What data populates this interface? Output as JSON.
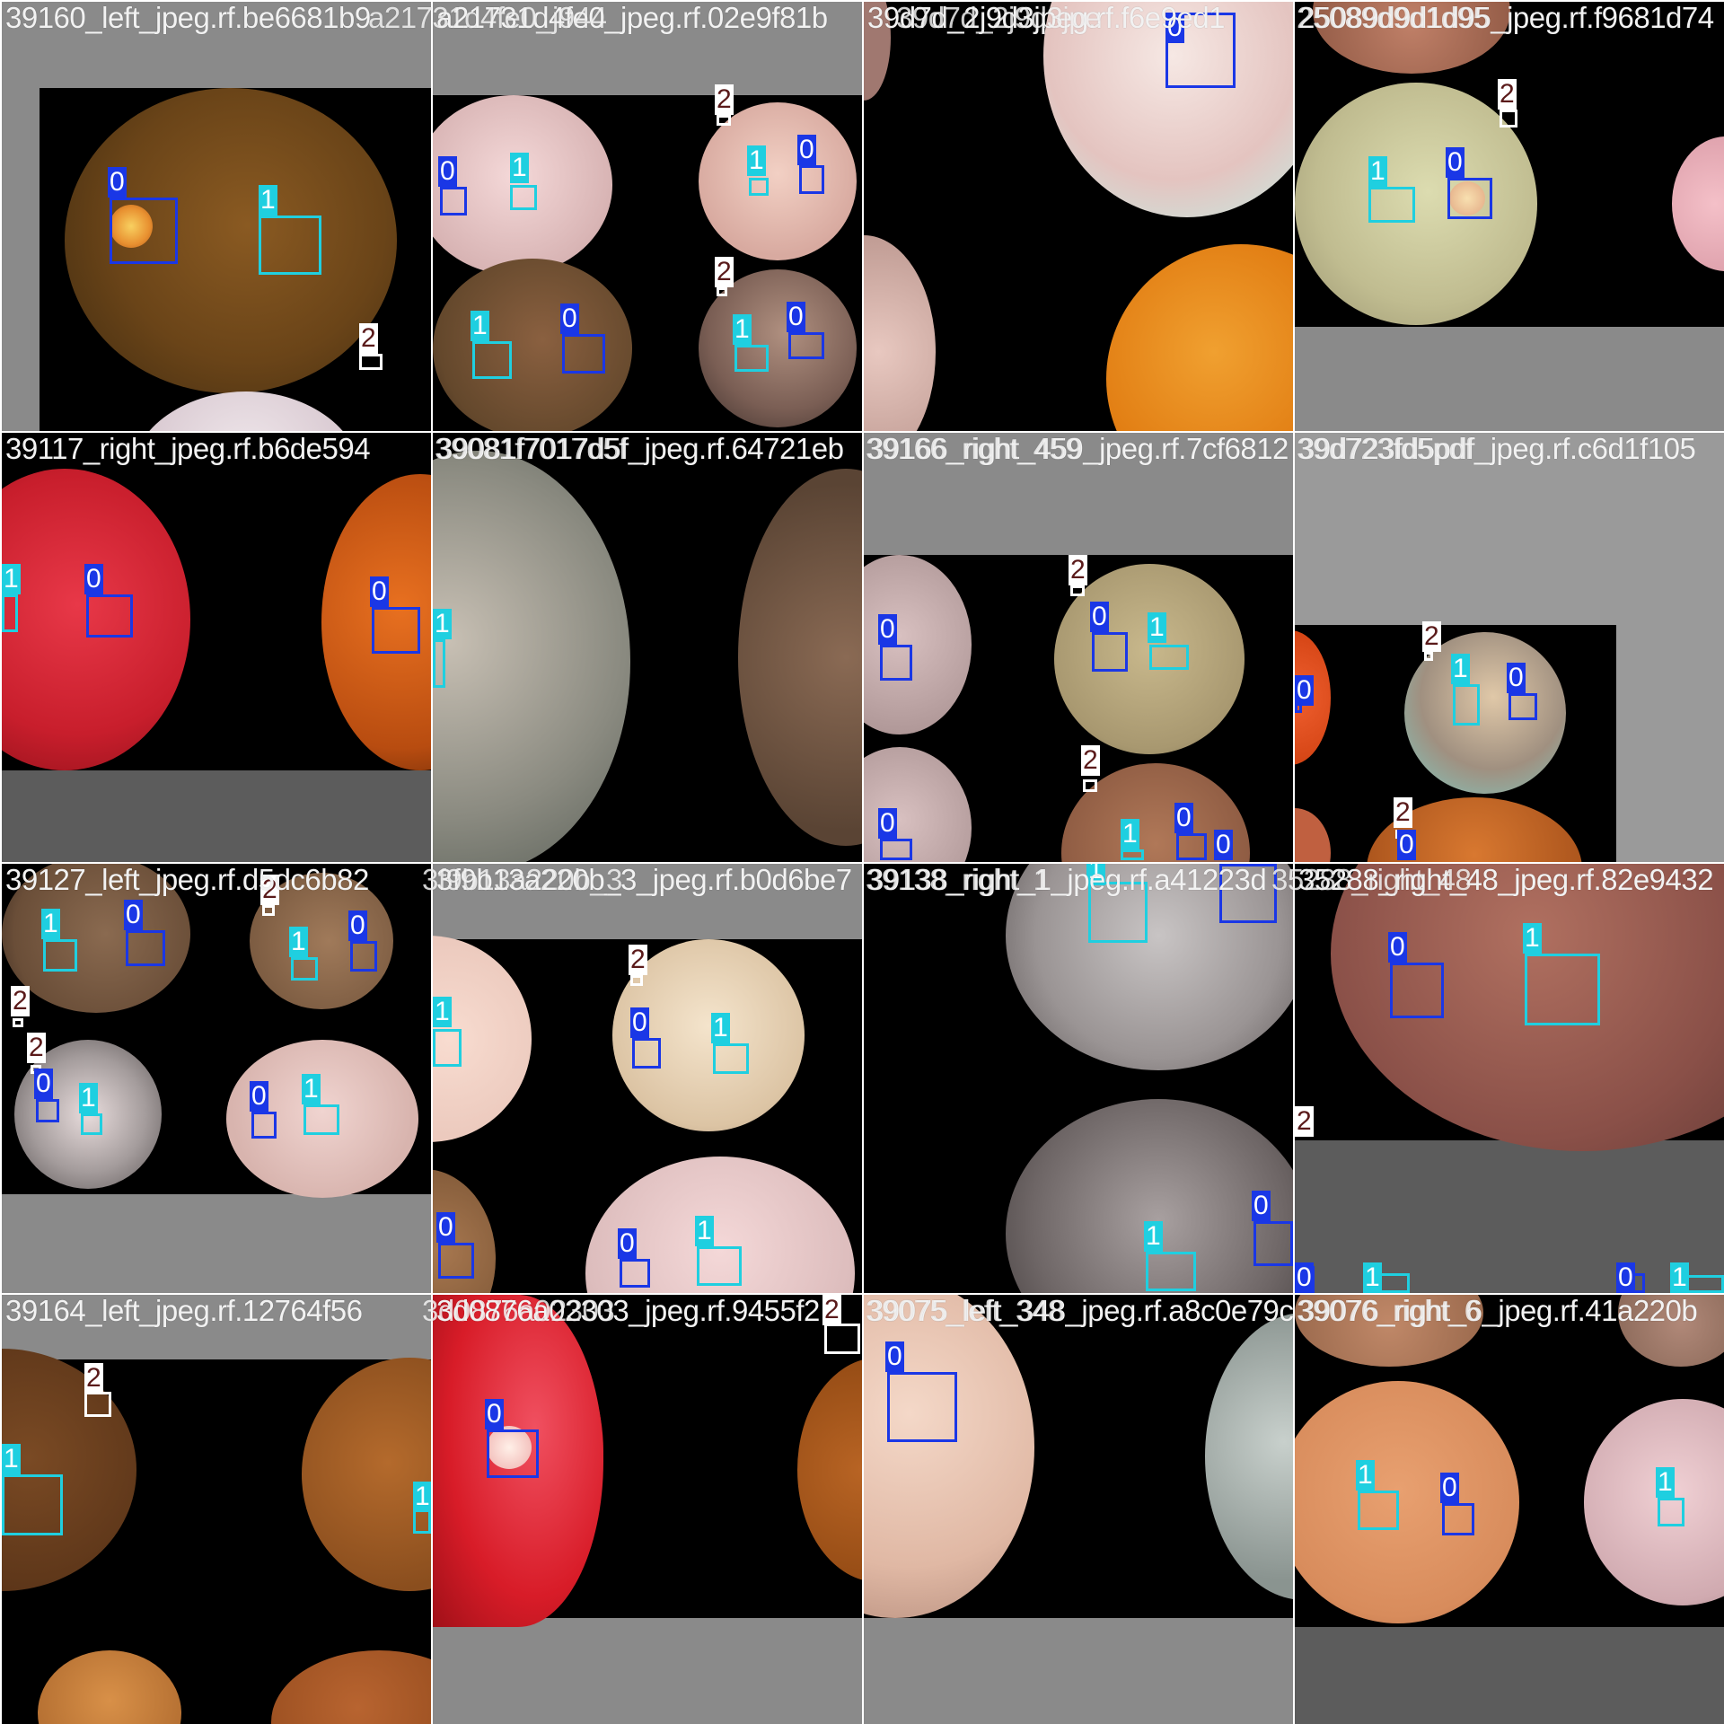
{
  "tiles": [
    {
      "title": "39160_left_jpeg.rf.be6681b9",
      "overlay": "a21731d4fe0_j944"
    },
    {
      "title": "a21731d4fe0_jpeg.rf.02e9f81b",
      "overlay": "39d7d_2j9d3jpe"
    },
    {
      "title": "39d7d_2j9d3jpeg.rf.f6e9ed1",
      "overlay": "25089d9d1d95"
    },
    {
      "title": "25089d9d1d95_jpeg.rf.f9681d74",
      "overlay": ""
    },
    {
      "title": "39117_right_jpeg.rf.b6de594",
      "overlay": "39081f7017d5f"
    },
    {
      "title": "39081f7017d5f_jpeg.rf.64721eb",
      "overlay": "39166_right_459"
    },
    {
      "title": "39166_right_459_jpeg.rf.7cf6812",
      "overlay": "39d723fd5pdf"
    },
    {
      "title": "39d723fd5pdf_jpeg.rf.c6d1f105",
      "overlay": ""
    },
    {
      "title": "39127_left_jpeg.rf.d5dc6b82",
      "overlay": "3f9b13a220b_3"
    },
    {
      "title": "3f9b13a220b_3_jpeg.rf.b0d6be7",
      "overlay": "39138_right_1"
    },
    {
      "title": "39138_right_1_jpeg.rf.a41223d",
      "overlay": "35288_right_48"
    },
    {
      "title": "35288_right_48_jpeg.rf.82e9432",
      "overlay": ""
    },
    {
      "title": "39164_left_jpeg.rf.12764f56",
      "overlay": "3d0876a02303"
    },
    {
      "title": "3d0876a02303_jpeg.rf.9455f2",
      "overlay": "39075_left_348"
    },
    {
      "title": "39075_left_348_jpeg.rf.a8c0e79c",
      "overlay": "39076_right_6"
    },
    {
      "title": "39076_right_6_jpeg.rf.41a220b",
      "overlay": ""
    }
  ],
  "class_labels": {
    "c0": "0",
    "c1": "1",
    "c2": "2"
  },
  "colors": {
    "class0": "#1a37e6",
    "class1": "#1fcfe0",
    "class2": "#ffffff",
    "gray_pad": "#8a8a8a"
  }
}
